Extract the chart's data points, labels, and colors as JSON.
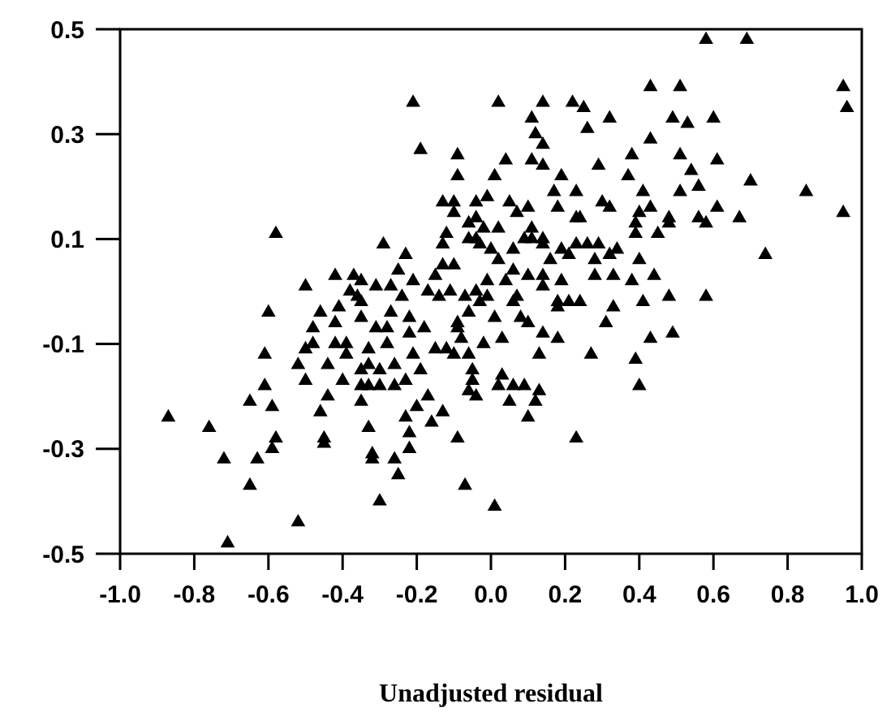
{
  "chart_data": {
    "type": "scatter",
    "xlabel": "Unadjusted residual",
    "marker": "triangle",
    "grid": false,
    "xlim": [
      -1,
      1
    ],
    "ylim": [
      -0.5,
      0.5
    ],
    "xticks": [
      {
        "value": -1,
        "label": "-1.0"
      },
      -0.8,
      -0.6,
      -0.4,
      -0.2,
      {
        "value": 0,
        "label": "0.0"
      },
      0.2,
      0.4,
      0.6,
      0.8,
      {
        "value": 1,
        "label": "1.0"
      }
    ],
    "yticks": [
      -0.5,
      -0.3,
      -0.1,
      0.1,
      0.3,
      0.5
    ],
    "series": [
      {
        "color": "#000000",
        "x": [
          0.58,
          0.69,
          0.43,
          0.51,
          0.95,
          0.96,
          0.02,
          0.14,
          0.22,
          0.25,
          0.11,
          0.26,
          0.32,
          0.49,
          0.53,
          0.6,
          0.12,
          0.14,
          0.43,
          0.04,
          0.11,
          0.14,
          0.29,
          0.38,
          0.51,
          0.61,
          0.01,
          0.37,
          0.54,
          0.19,
          0.56,
          0.7,
          0.17,
          0.23,
          0.41,
          0.51,
          0.85,
          -0.04,
          -0.01,
          0.3,
          0.05,
          0.32,
          0.43,
          0.4,
          0.1,
          0.07,
          0.18,
          0.23,
          0.24,
          0.48,
          0.61,
          0.67,
          0.95,
          0.56,
          0.58,
          0.48,
          -0.04,
          -0.06,
          0.02,
          0.11,
          0.39,
          0.45,
          0.39,
          -0.06,
          0.09,
          0.14,
          0.14,
          -0.03,
          0.0,
          0.11,
          0.23,
          0.26,
          0.29,
          0.34,
          0.19,
          0.06,
          0.16,
          0.21,
          0.32,
          0.28,
          0.02,
          0.74,
          0.4,
          0.28,
          0.06,
          0.1,
          0.14,
          0.33,
          0.44,
          0.19,
          0.04,
          -0.01,
          0.38,
          -0.04,
          0.07,
          0.14,
          -0.01,
          -0.07,
          0.18,
          0.21,
          0.24,
          0.33,
          0.41,
          0.48,
          0.58,
          0.18,
          -0.03,
          0.06,
          -0.06,
          0.01,
          0.08,
          0.1,
          0.31,
          0.43,
          0.49,
          0.14,
          0.03,
          0.18,
          -0.02,
          -0.06,
          0.13,
          0.27,
          0.39,
          -0.05,
          0.03,
          0.02,
          0.06,
          0.09,
          0.13,
          -0.05,
          -0.04,
          0.05,
          0.12,
          0.1,
          0.4,
          0.23,
          -0.07,
          0.01,
          -0.21,
          -0.19,
          -0.09,
          -0.09,
          -0.58,
          -0.29,
          -0.23,
          -0.13,
          -0.1,
          -0.1,
          -0.12,
          -0.13,
          -0.02,
          -0.04,
          -0.13,
          -0.1,
          -0.15,
          -0.25,
          -0.21,
          -0.42,
          -0.37,
          -0.35,
          -0.5,
          -0.31,
          -0.27,
          -0.24,
          -0.17,
          -0.14,
          -0.11,
          -0.38,
          -0.36,
          -0.35,
          -0.41,
          -0.46,
          -0.6,
          -0.27,
          -0.22,
          -0.09,
          -0.48,
          -0.42,
          -0.35,
          -0.31,
          -0.28,
          -0.22,
          -0.18,
          -0.09,
          -0.08,
          -0.5,
          -0.48,
          -0.42,
          -0.39,
          -0.33,
          -0.28,
          -0.21,
          -0.15,
          -0.12,
          -0.1,
          -0.61,
          -0.52,
          -0.5,
          -0.44,
          -0.4,
          -0.39,
          -0.35,
          -0.33,
          -0.3,
          -0.26,
          -0.19,
          -0.23,
          -0.26,
          -0.3,
          -0.33,
          -0.35,
          -0.61,
          -0.65,
          -0.59,
          -0.44,
          -0.35,
          -0.46,
          -0.17,
          -0.13,
          -0.16,
          -0.2,
          -0.23,
          -0.09,
          -0.87,
          -0.76,
          -0.33,
          -0.22,
          -0.58,
          -0.45,
          -0.22,
          -0.06,
          -0.72,
          -0.59,
          -0.63,
          -0.65,
          -0.52,
          -0.71,
          -0.45,
          -0.32,
          -0.32,
          -0.3,
          -0.26,
          -0.25
        ],
        "values": [
          0.48,
          0.48,
          0.39,
          0.39,
          0.39,
          0.35,
          0.36,
          0.36,
          0.36,
          0.35,
          0.33,
          0.31,
          0.33,
          0.33,
          0.32,
          0.33,
          0.3,
          0.28,
          0.29,
          0.25,
          0.25,
          0.24,
          0.24,
          0.26,
          0.26,
          0.25,
          0.22,
          0.22,
          0.23,
          0.22,
          0.2,
          0.21,
          0.19,
          0.19,
          0.19,
          0.19,
          0.19,
          0.17,
          0.18,
          0.17,
          0.17,
          0.16,
          0.16,
          0.15,
          0.16,
          0.15,
          0.16,
          0.14,
          0.14,
          0.14,
          0.16,
          0.14,
          0.15,
          0.14,
          0.13,
          0.13,
          0.14,
          0.13,
          0.12,
          0.12,
          0.13,
          0.11,
          0.11,
          0.1,
          0.1,
          0.1,
          0.09,
          0.09,
          0.08,
          0.1,
          0.09,
          0.09,
          0.09,
          0.08,
          0.08,
          0.08,
          0.06,
          0.07,
          0.07,
          0.06,
          0.06,
          0.07,
          0.06,
          0.03,
          0.04,
          0.03,
          0.03,
          0.03,
          0.03,
          0.02,
          0.02,
          0.02,
          0.02,
          0.0,
          -0.01,
          0.01,
          -0.01,
          -0.01,
          -0.02,
          -0.02,
          -0.02,
          -0.03,
          -0.02,
          -0.01,
          -0.01,
          -0.03,
          -0.02,
          -0.02,
          -0.04,
          -0.05,
          -0.05,
          -0.06,
          -0.06,
          -0.09,
          -0.08,
          -0.08,
          -0.09,
          -0.09,
          -0.1,
          -0.12,
          -0.12,
          -0.12,
          -0.13,
          -0.15,
          -0.16,
          -0.18,
          -0.18,
          -0.18,
          -0.19,
          -0.17,
          -0.2,
          -0.21,
          -0.21,
          -0.24,
          -0.18,
          -0.28,
          -0.37,
          -0.41,
          0.36,
          0.27,
          0.26,
          0.22,
          0.11,
          0.09,
          0.07,
          0.17,
          0.17,
          0.15,
          0.11,
          0.09,
          0.12,
          0.1,
          0.05,
          0.05,
          0.03,
          0.04,
          0.02,
          0.03,
          0.03,
          0.02,
          0.01,
          0.01,
          0.01,
          -0.01,
          0.0,
          -0.01,
          0.0,
          0.0,
          -0.01,
          -0.02,
          -0.03,
          -0.04,
          -0.04,
          -0.04,
          -0.05,
          -0.06,
          -0.07,
          -0.06,
          -0.05,
          -0.07,
          -0.07,
          -0.08,
          -0.07,
          -0.07,
          -0.09,
          -0.11,
          -0.1,
          -0.1,
          -0.1,
          -0.11,
          -0.1,
          -0.12,
          -0.11,
          -0.11,
          -0.12,
          -0.12,
          -0.14,
          -0.17,
          -0.14,
          -0.17,
          -0.12,
          -0.15,
          -0.14,
          -0.15,
          -0.14,
          -0.15,
          -0.17,
          -0.18,
          -0.18,
          -0.18,
          -0.18,
          -0.18,
          -0.21,
          -0.22,
          -0.2,
          -0.21,
          -0.23,
          -0.2,
          -0.23,
          -0.25,
          -0.22,
          -0.24,
          -0.28,
          -0.24,
          -0.26,
          -0.26,
          -0.27,
          -0.28,
          -0.28,
          -0.3,
          -0.19,
          -0.32,
          -0.3,
          -0.32,
          -0.37,
          -0.44,
          -0.48,
          -0.29,
          -0.31,
          -0.32,
          -0.4,
          -0.32,
          -0.35
        ]
      }
    ]
  }
}
